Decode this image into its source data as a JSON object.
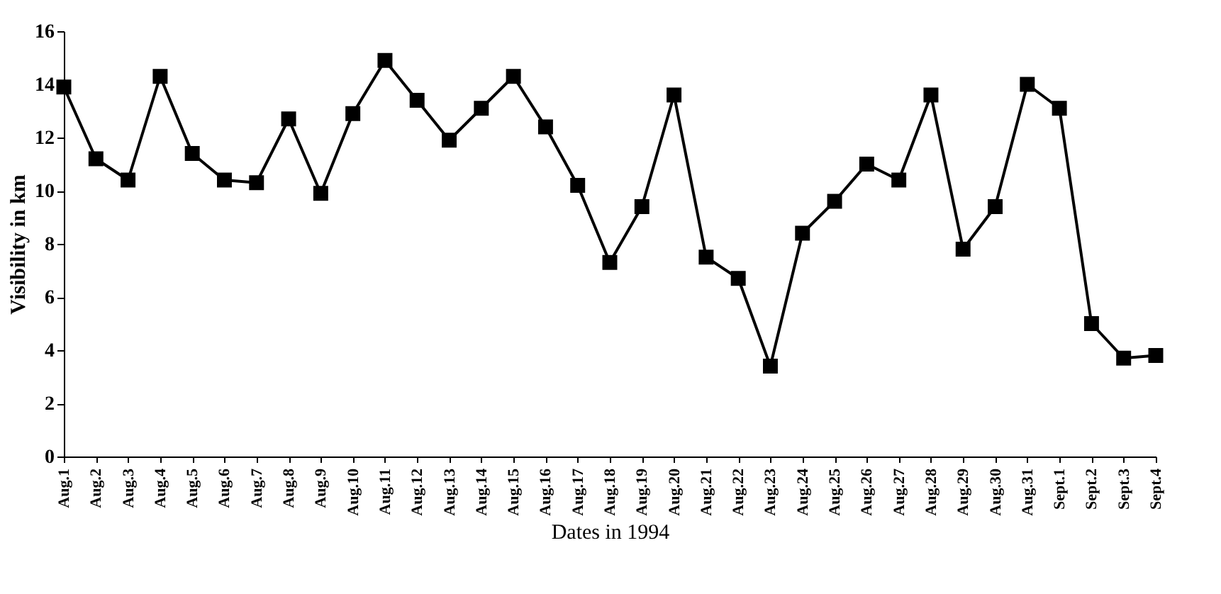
{
  "chart_data": {
    "type": "line",
    "xlabel": "Dates in 1994",
    "ylabel": "Visibility in km",
    "categories": [
      "Aug.1",
      "Aug.2",
      "Aug.3",
      "Aug.4",
      "Aug.5",
      "Aug.6",
      "Aug.7",
      "Aug.8",
      "Aug.9",
      "Aug.10",
      "Aug.11",
      "Aug.12",
      "Aug.13",
      "Aug.14",
      "Aug.15",
      "Aug.16",
      "Aug.17",
      "Aug.18",
      "Aug.19",
      "Aug.20",
      "Aug.21",
      "Aug.22",
      "Aug.23",
      "Aug.24",
      "Aug.25",
      "Aug.26",
      "Aug.27",
      "Aug.28",
      "Aug.29",
      "Aug.30",
      "Aug.31",
      "Sept.1",
      "Sept.2",
      "Sept.3",
      "Sept.4"
    ],
    "series": [
      {
        "color": "#000000",
        "values": [
          13.9,
          11.2,
          10.4,
          14.3,
          11.4,
          10.4,
          10.3,
          12.7,
          9.9,
          12.9,
          14.9,
          13.4,
          11.9,
          13.1,
          14.3,
          12.4,
          10.2,
          7.3,
          9.4,
          13.6,
          7.5,
          6.7,
          3.4,
          8.4,
          9.6,
          11.0,
          10.4,
          13.6,
          7.8,
          9.4,
          14.0,
          13.1,
          5.0,
          3.7,
          3.8
        ]
      }
    ],
    "ylim": [
      0,
      16
    ],
    "yticks": [
      0,
      2,
      4,
      6,
      8,
      10,
      12,
      14,
      16
    ],
    "grid": false,
    "marker": "square",
    "line_style": "solid"
  }
}
